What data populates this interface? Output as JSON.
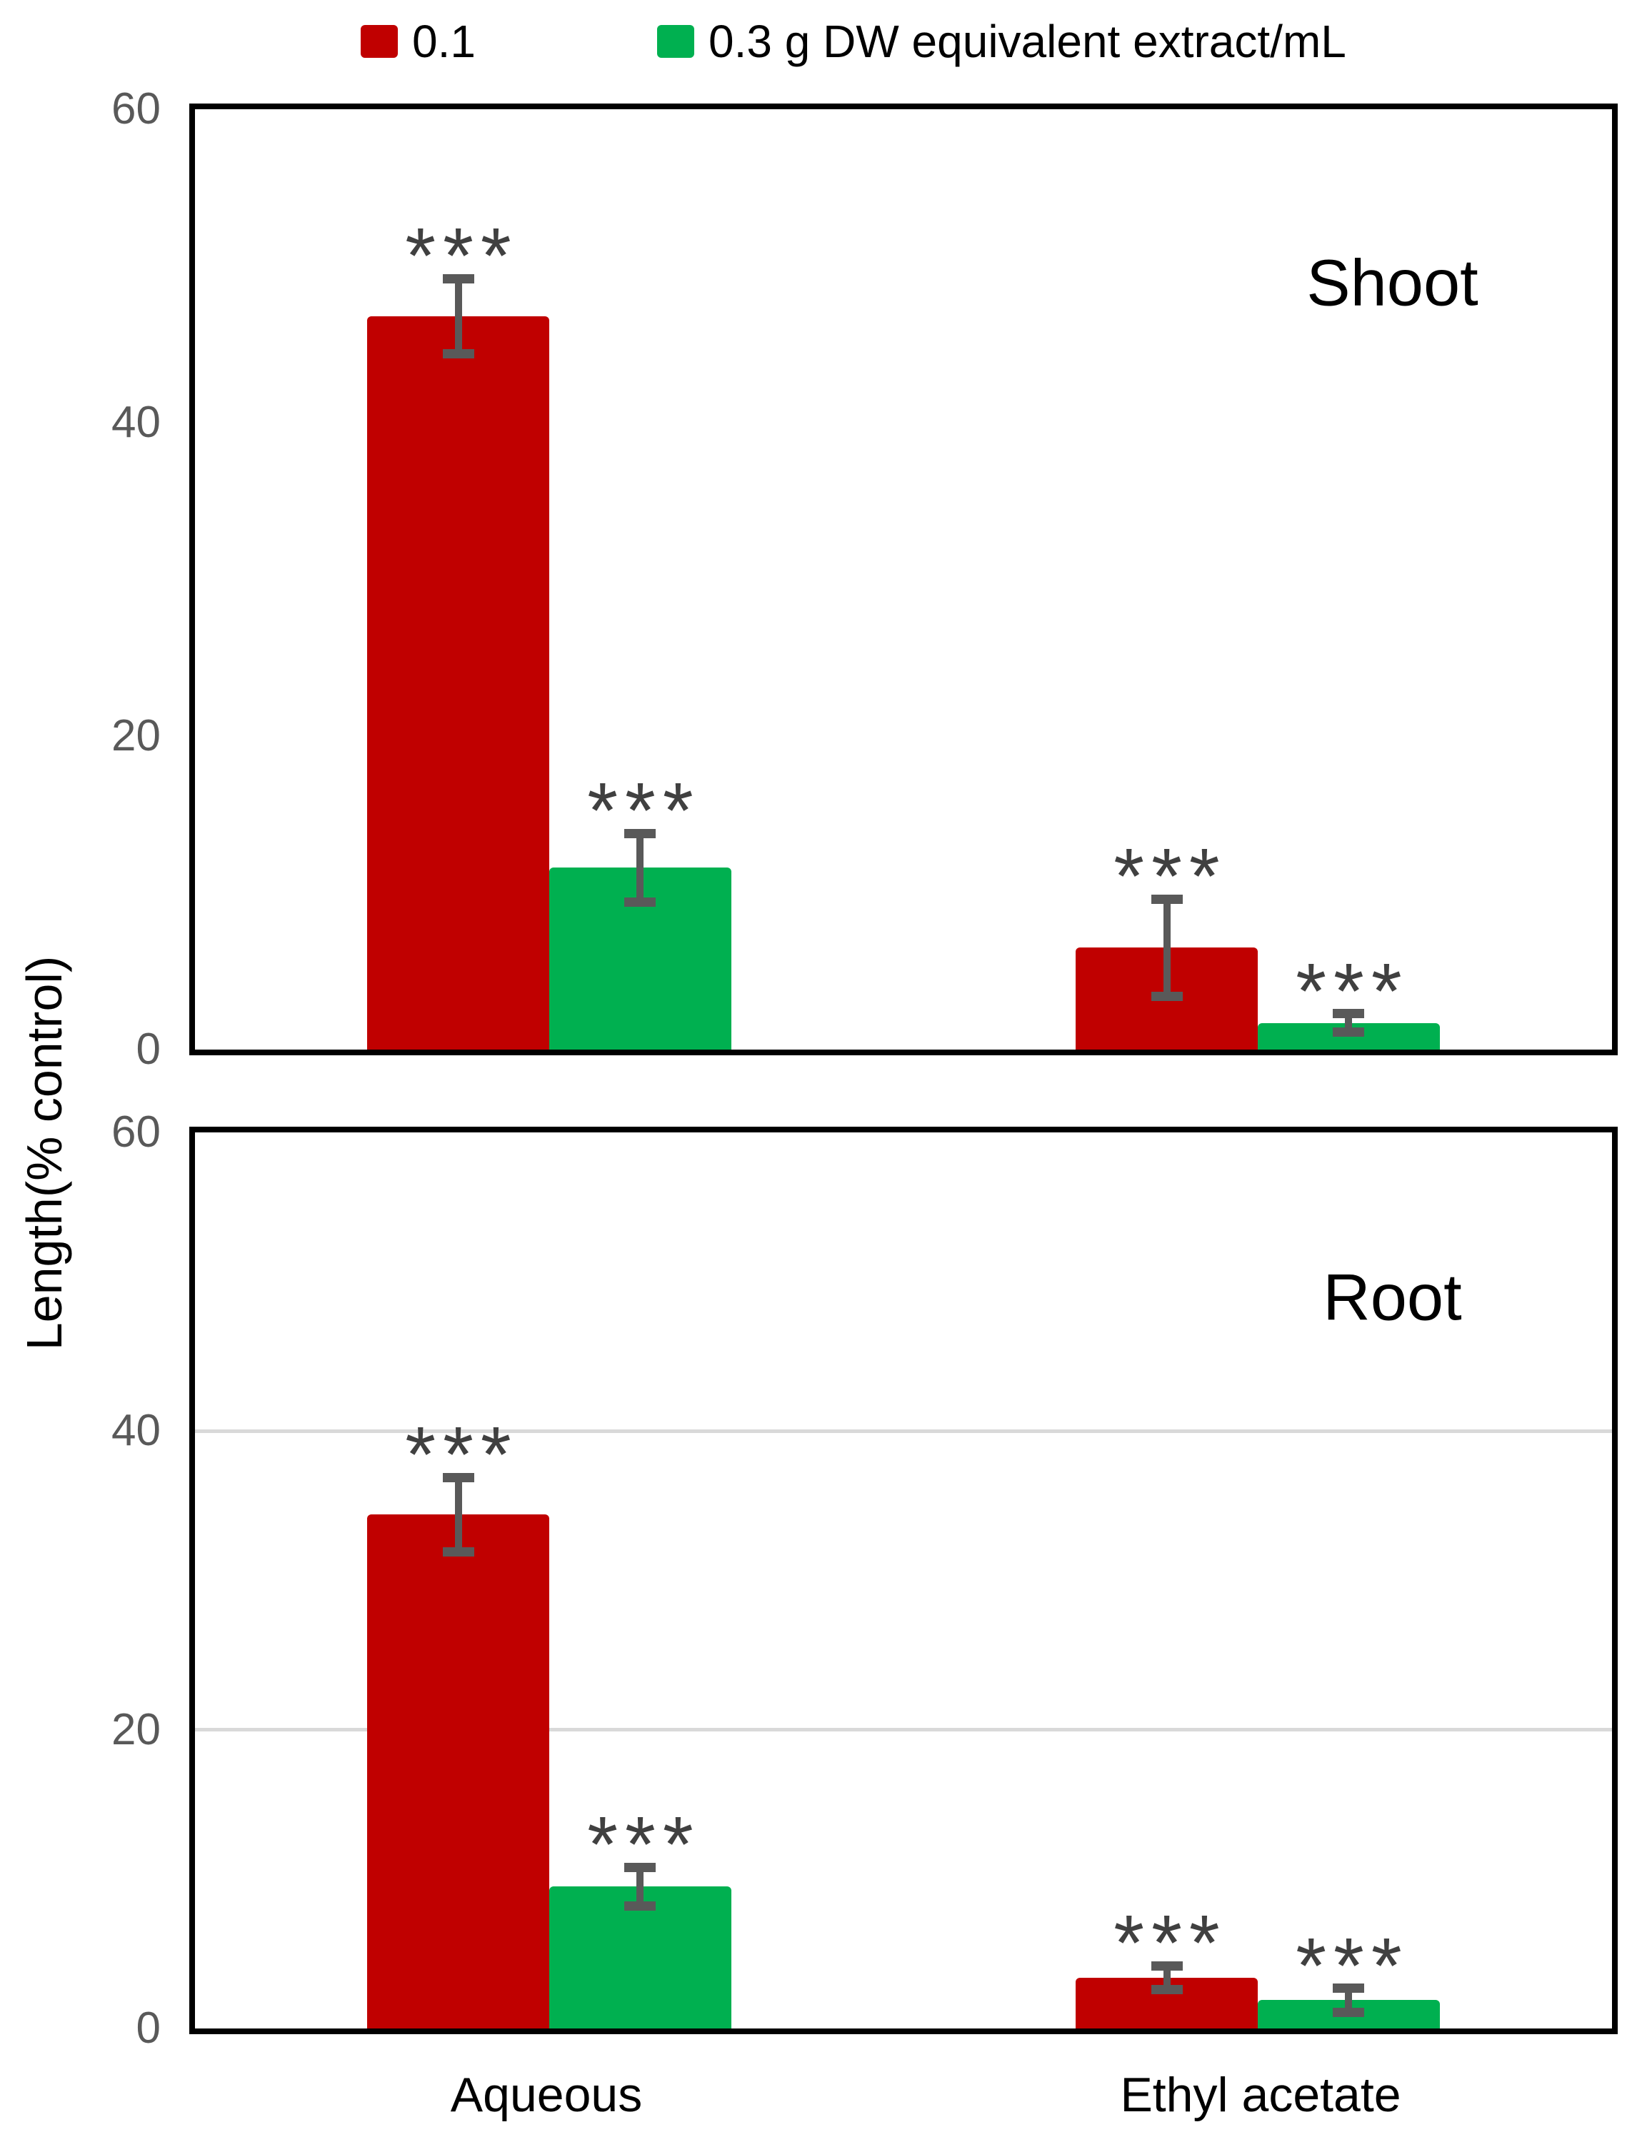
{
  "legend": {
    "items": [
      {
        "label": "0.1",
        "color": "#C00000"
      },
      {
        "label": "0.3 g DW equivalent extract/mL",
        "color": "#00B050"
      }
    ]
  },
  "y_axis": {
    "title": "Length(% control)",
    "ticks": [
      0,
      20,
      40,
      60
    ],
    "max": 60
  },
  "x_axis": {
    "categories": [
      "Aqueous",
      "Ethyl acetate"
    ]
  },
  "significance_marker": "***",
  "style": {
    "axis_color": "#000000",
    "tick_color": "#595959",
    "grid_color": "#D9D9D9",
    "error_bar_color": "#595959",
    "sig_color": "#404040"
  },
  "chart_data": [
    {
      "type": "bar",
      "panel": "Shoot",
      "categories": [
        "Aqueous",
        "Ethyl acetate"
      ],
      "gridlines": false,
      "ylim": [
        0,
        60
      ],
      "ylabel": "Length(% control)",
      "legend_position": "top",
      "series": [
        {
          "name": "0.1",
          "color": "#C00000",
          "values": [
            46.8,
            6.5
          ],
          "errors": [
            2.4,
            3.1
          ]
        },
        {
          "name": "0.3 g DW equivalent extract/mL",
          "color": "#00B050",
          "values": [
            11.6,
            1.7
          ],
          "errors": [
            2.2,
            0.6
          ]
        }
      ],
      "annotations": [
        "***",
        "***",
        "***",
        "***"
      ]
    },
    {
      "type": "bar",
      "panel": "Root",
      "categories": [
        "Aqueous",
        "Ethyl acetate"
      ],
      "gridlines": true,
      "ylim": [
        0,
        60
      ],
      "ylabel": "Length(% control)",
      "legend_position": "top",
      "series": [
        {
          "name": "0.1",
          "color": "#C00000",
          "values": [
            34.4,
            3.4
          ],
          "errors": [
            2.5,
            0.8
          ]
        },
        {
          "name": "0.3 g DW equivalent extract/mL",
          "color": "#00B050",
          "values": [
            9.5,
            1.9
          ],
          "errors": [
            1.3,
            0.8
          ]
        }
      ],
      "annotations": [
        "***",
        "***",
        "***",
        "***"
      ]
    }
  ]
}
